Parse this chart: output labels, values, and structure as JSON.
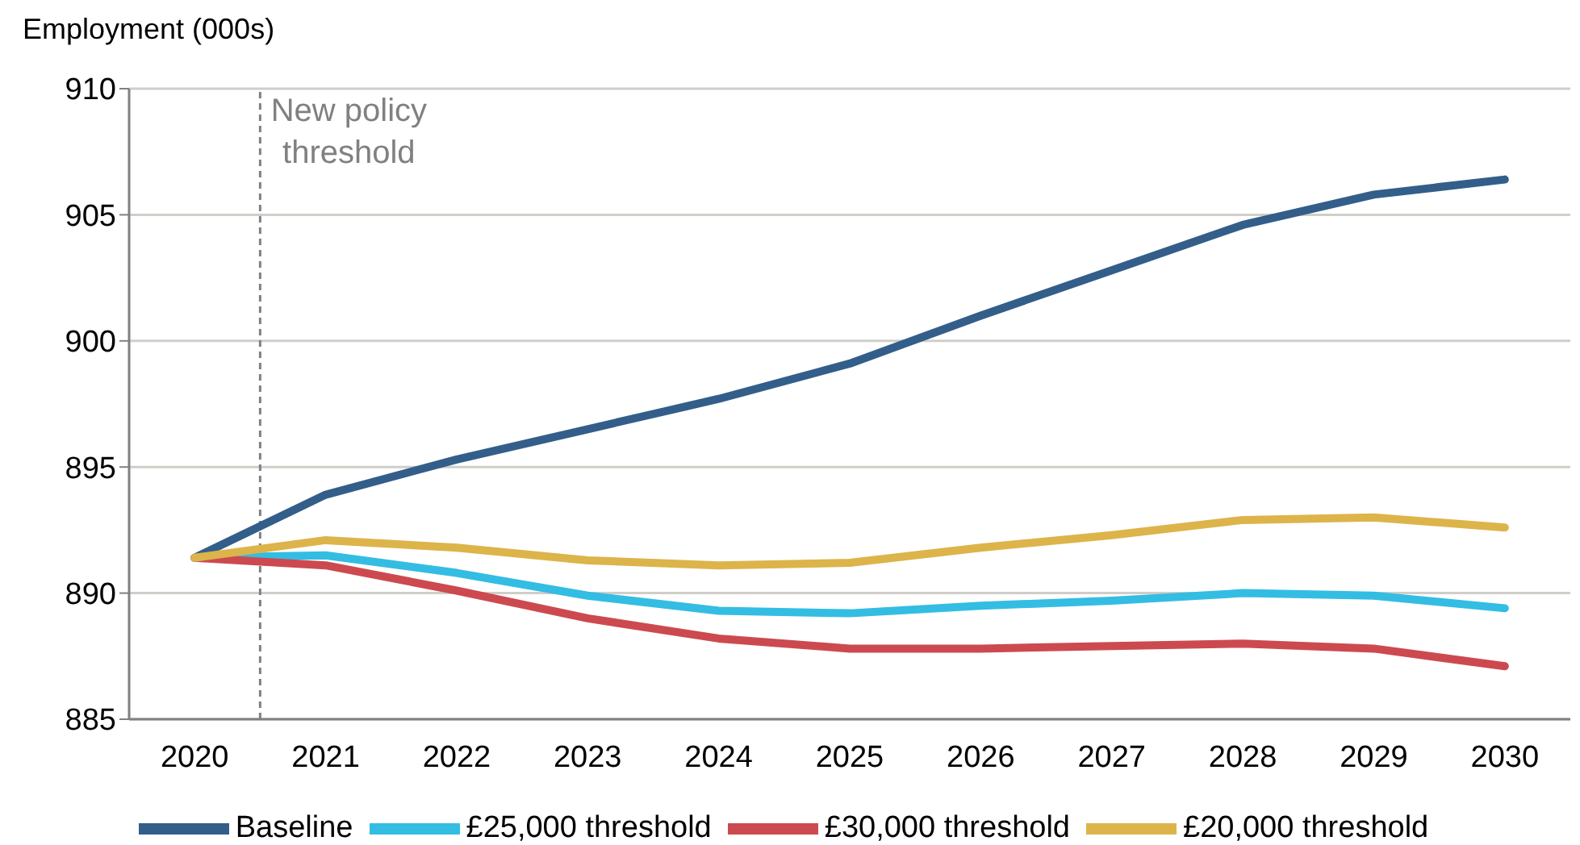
{
  "chart_data": {
    "type": "line",
    "ylabel": "Employment (000s)",
    "x": [
      2020,
      2021,
      2022,
      2023,
      2024,
      2025,
      2026,
      2027,
      2028,
      2029,
      2030
    ],
    "xlim": [
      2019.5,
      2030.5
    ],
    "xticks": [
      2020,
      2021,
      2022,
      2023,
      2024,
      2025,
      2026,
      2027,
      2028,
      2029,
      2030
    ],
    "ylim": [
      885,
      910
    ],
    "yticks": [
      885,
      890,
      895,
      900,
      905,
      910
    ],
    "grid": "y",
    "legend": "bottom",
    "marker": "none",
    "line_style": "solid",
    "ref_lines": [
      {
        "axis": "x",
        "value": 2020.5,
        "label": "New policy threshold",
        "color": "#808080",
        "line_style": "dashed"
      }
    ],
    "series": [
      {
        "name": "Baseline",
        "color": "#335e8a",
        "values": [
          891.4,
          893.9,
          895.3,
          896.5,
          897.7,
          899.1,
          901.0,
          902.8,
          904.6,
          905.8,
          906.4
        ]
      },
      {
        "name": "£25,000 threshold",
        "color": "#33bde3",
        "values": [
          891.4,
          891.5,
          890.8,
          889.9,
          889.3,
          889.2,
          889.5,
          889.7,
          890.0,
          889.9,
          889.4
        ]
      },
      {
        "name": "£30,000 threshold",
        "color": "#cc4a4f",
        "values": [
          891.4,
          891.1,
          890.1,
          889.0,
          888.2,
          887.8,
          887.8,
          887.9,
          888.0,
          887.8,
          887.1
        ]
      },
      {
        "name": "£20,000 threshold",
        "color": "#dcb44a",
        "values": [
          891.4,
          892.1,
          891.8,
          891.3,
          891.1,
          891.2,
          891.8,
          892.3,
          892.9,
          893.0,
          892.6
        ]
      }
    ]
  }
}
